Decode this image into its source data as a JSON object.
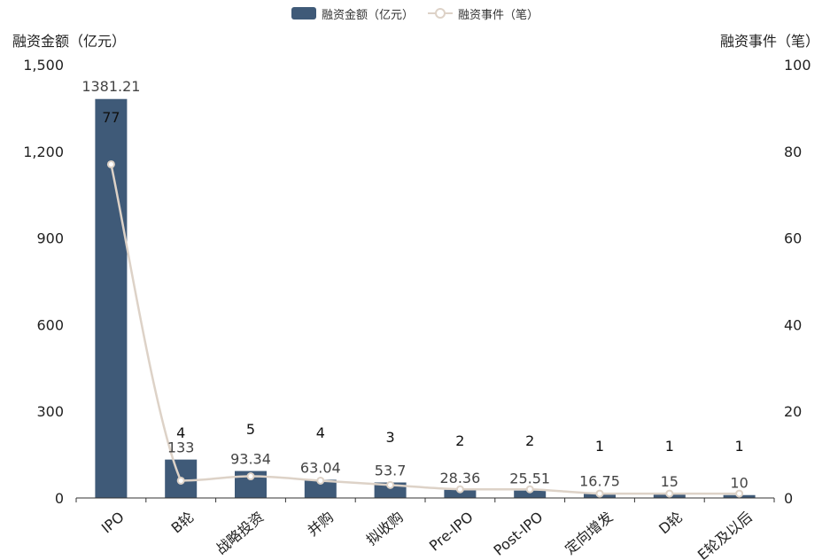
{
  "legend": {
    "bar_label": "融资金额（亿元）",
    "line_label": "融资事件（笔）"
  },
  "colors": {
    "bar": "#3f5a78",
    "line": "#ddd2c7",
    "axis": "#333333",
    "text": "#222222"
  },
  "chart_data": {
    "type": "bar",
    "title": "",
    "xlabel": "",
    "categories": [
      "IPO",
      "B轮",
      "战略投资",
      "并购",
      "拟收购",
      "Pre-IPO",
      "Post-IPO",
      "定向增发",
      "D轮",
      "E轮及以后"
    ],
    "series": [
      {
        "name": "融资金额（亿元）",
        "type": "bar",
        "axis": "left",
        "values": [
          1381.21,
          133,
          93.34,
          63.04,
          53.7,
          28.36,
          25.51,
          16.75,
          15,
          10
        ]
      },
      {
        "name": "融资事件（笔）",
        "type": "line",
        "smooth": true,
        "axis": "right",
        "values": [
          77,
          4,
          5,
          4,
          3,
          2,
          2,
          1,
          1,
          1
        ]
      }
    ],
    "y_left": {
      "label": "融资金额（亿元）",
      "ylim": [
        0,
        1500
      ],
      "ticks": [
        0,
        300,
        600,
        900,
        1200,
        1500
      ],
      "tick_labels": [
        "0",
        "300",
        "600",
        "900",
        "1,200",
        "1,500"
      ]
    },
    "y_right": {
      "label": "融资事件（笔）",
      "ylim": [
        0,
        100
      ],
      "ticks": [
        0,
        20,
        40,
        60,
        80,
        100
      ],
      "tick_labels": [
        "0",
        "20",
        "40",
        "60",
        "80",
        "100"
      ]
    },
    "bar_labels": [
      "1381.21",
      "133",
      "93.34",
      "63.04",
      "53.7",
      "28.36",
      "25.51",
      "16.75",
      "15",
      "10"
    ],
    "line_labels": [
      "77",
      "4",
      "5",
      "4",
      "3",
      "2",
      "2",
      "1",
      "1",
      "1"
    ],
    "grid": false,
    "legend_position": "top-center"
  }
}
